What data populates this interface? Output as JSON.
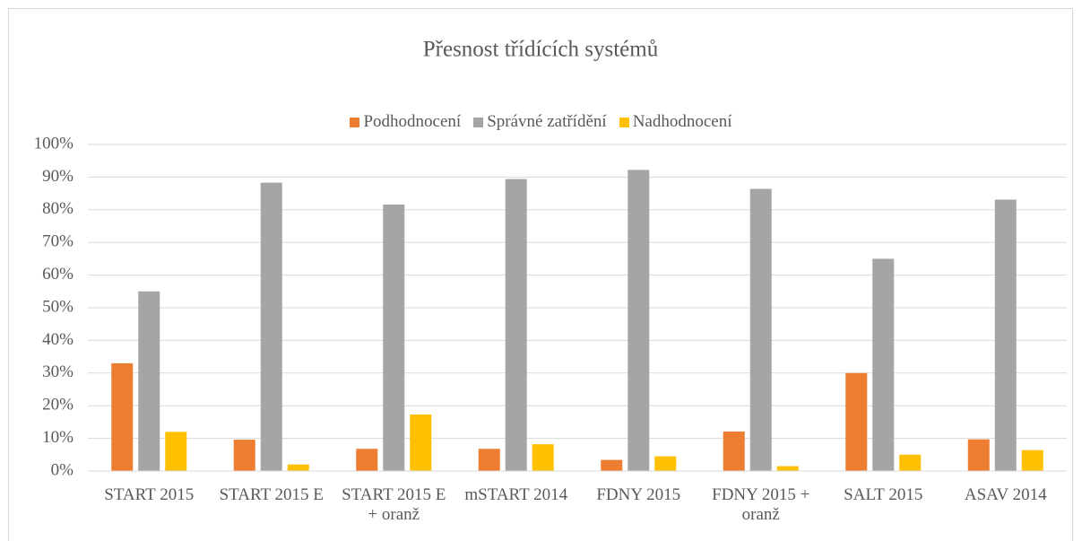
{
  "chart_data": {
    "type": "bar",
    "title": "Přesnost třídících systémů",
    "categories": [
      "START 2015",
      "START 2015 E",
      "START 2015 E + oranž",
      "mSTART 2014",
      "FDNY 2015",
      "FDNY 2015 + oranž",
      "SALT 2015",
      "ASAV 2014"
    ],
    "series": [
      {
        "name": "Podhodnocení",
        "color": "#ed7d31",
        "values": [
          33,
          9.6,
          6.8,
          6.8,
          3.4,
          12.1,
          30,
          9.7
        ]
      },
      {
        "name": "Správné zatřídění",
        "color": "#a5a5a5",
        "values": [
          55,
          88.3,
          81.6,
          89.4,
          92.2,
          86.4,
          65,
          83.1
        ]
      },
      {
        "name": "Nadhodnocení",
        "color": "#ffc000",
        "values": [
          12,
          2,
          17.3,
          8.2,
          4.5,
          1.5,
          5,
          6.4
        ]
      }
    ],
    "ylim": [
      0,
      100
    ],
    "yticks": [
      {
        "value": 0,
        "label": "0%"
      },
      {
        "value": 10,
        "label": "10%"
      },
      {
        "value": 20,
        "label": "20%"
      },
      {
        "value": 30,
        "label": "30%"
      },
      {
        "value": 40,
        "label": "40%"
      },
      {
        "value": 50,
        "label": "50%"
      },
      {
        "value": 60,
        "label": "60%"
      },
      {
        "value": 70,
        "label": "70%"
      },
      {
        "value": 80,
        "label": "80%"
      },
      {
        "value": 90,
        "label": "90%"
      },
      {
        "value": 100,
        "label": "100%"
      }
    ],
    "grid": true,
    "legend": "top"
  }
}
